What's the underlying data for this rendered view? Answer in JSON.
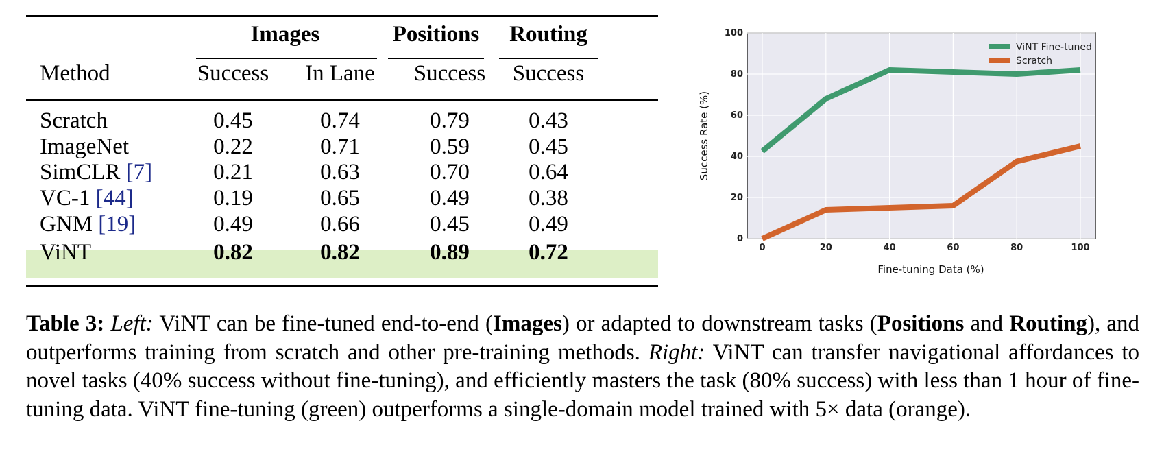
{
  "table": {
    "groups": {
      "images": "Images",
      "positions": "Positions",
      "routing": "Routing"
    },
    "headers": {
      "method": "Method",
      "images_success": "Success",
      "images_in_lane": "In Lane",
      "positions_success": "Success",
      "routing_success": "Success"
    },
    "rows": [
      {
        "method": "Scratch",
        "cite": "",
        "images_success": "0.45",
        "in_lane": "0.74",
        "positions": "0.79",
        "routing": "0.43"
      },
      {
        "method": "ImageNet",
        "cite": "",
        "images_success": "0.22",
        "in_lane": "0.71",
        "positions": "0.59",
        "routing": "0.45"
      },
      {
        "method": "SimCLR ",
        "cite": "[7]",
        "images_success": "0.21",
        "in_lane": "0.63",
        "positions": "0.70",
        "routing": "0.64"
      },
      {
        "method": "VC-1 ",
        "cite": "[44]",
        "images_success": "0.19",
        "in_lane": "0.65",
        "positions": "0.49",
        "routing": "0.38"
      },
      {
        "method": "GNM ",
        "cite": "[19]",
        "images_success": "0.49",
        "in_lane": "0.66",
        "positions": "0.45",
        "routing": "0.49"
      },
      {
        "method": "ViNT",
        "cite": "",
        "images_success": "0.82",
        "in_lane": "0.82",
        "positions": "0.89",
        "routing": "0.72"
      }
    ],
    "highlight_color": "#ddefc6",
    "cite_color": "#1c2a8a"
  },
  "chart_data": {
    "type": "line",
    "title": "",
    "xlabel": "Fine-tuning Data (%)",
    "ylabel": "Success Rate (%)",
    "x": [
      0,
      20,
      40,
      60,
      80,
      100
    ],
    "xlim": [
      0,
      100
    ],
    "ylim": [
      0,
      100
    ],
    "xticks": [
      0,
      20,
      40,
      60,
      80,
      100
    ],
    "yticks": [
      0,
      20,
      40,
      60,
      80,
      100
    ],
    "grid": true,
    "legend_position": "top-right",
    "series": [
      {
        "name": "ViNT Fine-tuned",
        "color": "#3f9a6e",
        "values": [
          42.5,
          68,
          82,
          81,
          80,
          82
        ]
      },
      {
        "name": "Scratch",
        "color": "#d2642c",
        "values": [
          0,
          14,
          15,
          16,
          37.5,
          45
        ]
      }
    ],
    "background": "#e9e9f1"
  },
  "caption": {
    "label": "Table 3:",
    "left": "Left:",
    "t1": " ViNT can be fine-tuned end-to-end (",
    "b1": "Images",
    "t2": ") or adapted to downstream tasks (",
    "b2": "Positions",
    "t3": " and ",
    "b3": "Routing",
    "t4": "), and outperforms training from scratch and other pre-training methods. ",
    "right": "Right:",
    "t5": " ViNT can transfer navigational affordances to novel tasks (40% success without fine-tuning), and efficiently masters the task (80% success) with less than 1 hour of fine-tuning data. ViNT fine-tuning (green) outperforms a single-domain model trained with 5× data (orange)."
  }
}
